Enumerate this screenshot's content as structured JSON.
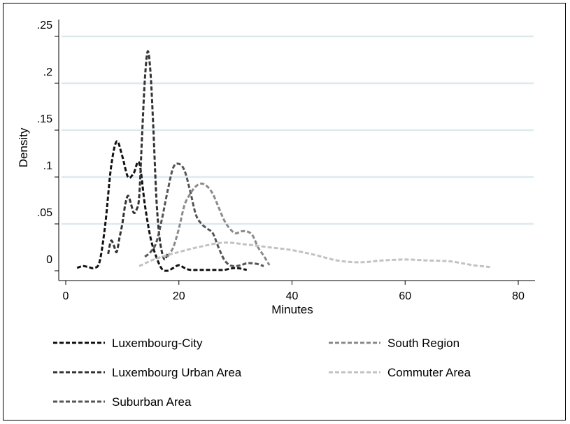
{
  "chart_data": {
    "type": "line",
    "xlabel": "Minutes",
    "ylabel": "Density",
    "xlim": [
      0,
      80
    ],
    "ylim": [
      0,
      0.25
    ],
    "x_ticks": [
      {
        "value": 0,
        "label": "0"
      },
      {
        "value": 20,
        "label": "20"
      },
      {
        "value": 40,
        "label": "40"
      },
      {
        "value": 60,
        "label": "60"
      },
      {
        "value": 80,
        "label": "80"
      }
    ],
    "y_ticks": [
      {
        "value": 0,
        "label": "0"
      },
      {
        "value": 0.05,
        "label": ".05"
      },
      {
        "value": 0.1,
        "label": ".1"
      },
      {
        "value": 0.15,
        "label": ".15"
      },
      {
        "value": 0.2,
        "label": ".2"
      },
      {
        "value": 0.25,
        "label": ".25"
      }
    ],
    "grid": "horizontal",
    "legend_position": "bottom",
    "series": [
      {
        "name": "Luxembourg-City",
        "color": "#111111",
        "points": [
          [
            2,
            0.003
          ],
          [
            3,
            0.005
          ],
          [
            4,
            0.004
          ],
          [
            5,
            0.003
          ],
          [
            6,
            0.01
          ],
          [
            7,
            0.05
          ],
          [
            8,
            0.11
          ],
          [
            9,
            0.138
          ],
          [
            10,
            0.122
          ],
          [
            11,
            0.1
          ],
          [
            12,
            0.104
          ],
          [
            13,
            0.115
          ],
          [
            14,
            0.07
          ],
          [
            15,
            0.035
          ],
          [
            16,
            0.015
          ],
          [
            17,
            0.002
          ],
          [
            18,
            0.0
          ],
          [
            19,
            0.003
          ],
          [
            20,
            0.006
          ],
          [
            21,
            0.003
          ],
          [
            22,
            0.001
          ],
          [
            24,
            0.001
          ],
          [
            26,
            0.001
          ],
          [
            28,
            0.001
          ],
          [
            30,
            0.003
          ],
          [
            32,
            0.001
          ]
        ]
      },
      {
        "name": "Luxembourg Urban Area",
        "color": "#333333",
        "points": [
          [
            7.5,
            0.018
          ],
          [
            8,
            0.032
          ],
          [
            8.5,
            0.027
          ],
          [
            9,
            0.02
          ],
          [
            9.5,
            0.035
          ],
          [
            10,
            0.05
          ],
          [
            10.5,
            0.07
          ],
          [
            11,
            0.08
          ],
          [
            11.5,
            0.072
          ],
          [
            12,
            0.062
          ],
          [
            12.5,
            0.065
          ],
          [
            13,
            0.08
          ],
          [
            13.5,
            0.145
          ],
          [
            14,
            0.205
          ],
          [
            14.5,
            0.234
          ],
          [
            15,
            0.21
          ],
          [
            15.5,
            0.15
          ],
          [
            16,
            0.08
          ],
          [
            16.5,
            0.04
          ],
          [
            17,
            0.02
          ],
          [
            17.5,
            0.012
          ],
          [
            18,
            0.018
          ]
        ]
      },
      {
        "name": "Suburban Area",
        "color": "#555555",
        "points": [
          [
            14,
            0.015
          ],
          [
            15,
            0.02
          ],
          [
            16,
            0.03
          ],
          [
            17,
            0.055
          ],
          [
            18,
            0.085
          ],
          [
            19,
            0.11
          ],
          [
            20,
            0.114
          ],
          [
            21,
            0.107
          ],
          [
            22,
            0.085
          ],
          [
            23,
            0.06
          ],
          [
            24,
            0.05
          ],
          [
            25,
            0.045
          ],
          [
            26,
            0.04
          ],
          [
            27,
            0.025
          ],
          [
            28,
            0.012
          ],
          [
            29,
            0.006
          ],
          [
            30,
            0.005
          ],
          [
            31,
            0.006
          ],
          [
            32,
            0.008
          ],
          [
            33,
            0.008
          ],
          [
            34,
            0.007
          ],
          [
            35,
            0.005
          ]
        ]
      },
      {
        "name": "South Region",
        "color": "#8a8a8a",
        "points": [
          [
            18,
            0.015
          ],
          [
            19,
            0.025
          ],
          [
            20,
            0.045
          ],
          [
            21,
            0.07
          ],
          [
            22,
            0.082
          ],
          [
            23,
            0.09
          ],
          [
            24,
            0.093
          ],
          [
            25,
            0.09
          ],
          [
            26,
            0.082
          ],
          [
            27,
            0.068
          ],
          [
            28,
            0.054
          ],
          [
            29,
            0.045
          ],
          [
            30,
            0.04
          ],
          [
            31,
            0.042
          ],
          [
            32,
            0.042
          ],
          [
            33,
            0.038
          ],
          [
            34,
            0.025
          ],
          [
            35,
            0.016
          ],
          [
            36,
            0.006
          ]
        ]
      },
      {
        "name": "Commuter Area",
        "color": "#c2c2c2",
        "points": [
          [
            13,
            0.005
          ],
          [
            16,
            0.013
          ],
          [
            20,
            0.02
          ],
          [
            24,
            0.026
          ],
          [
            28,
            0.03
          ],
          [
            32,
            0.028
          ],
          [
            36,
            0.025
          ],
          [
            40,
            0.022
          ],
          [
            44,
            0.017
          ],
          [
            48,
            0.011
          ],
          [
            52,
            0.009
          ],
          [
            56,
            0.011
          ],
          [
            60,
            0.012
          ],
          [
            64,
            0.011
          ],
          [
            68,
            0.01
          ],
          [
            72,
            0.006
          ],
          [
            75,
            0.004
          ]
        ]
      }
    ]
  }
}
